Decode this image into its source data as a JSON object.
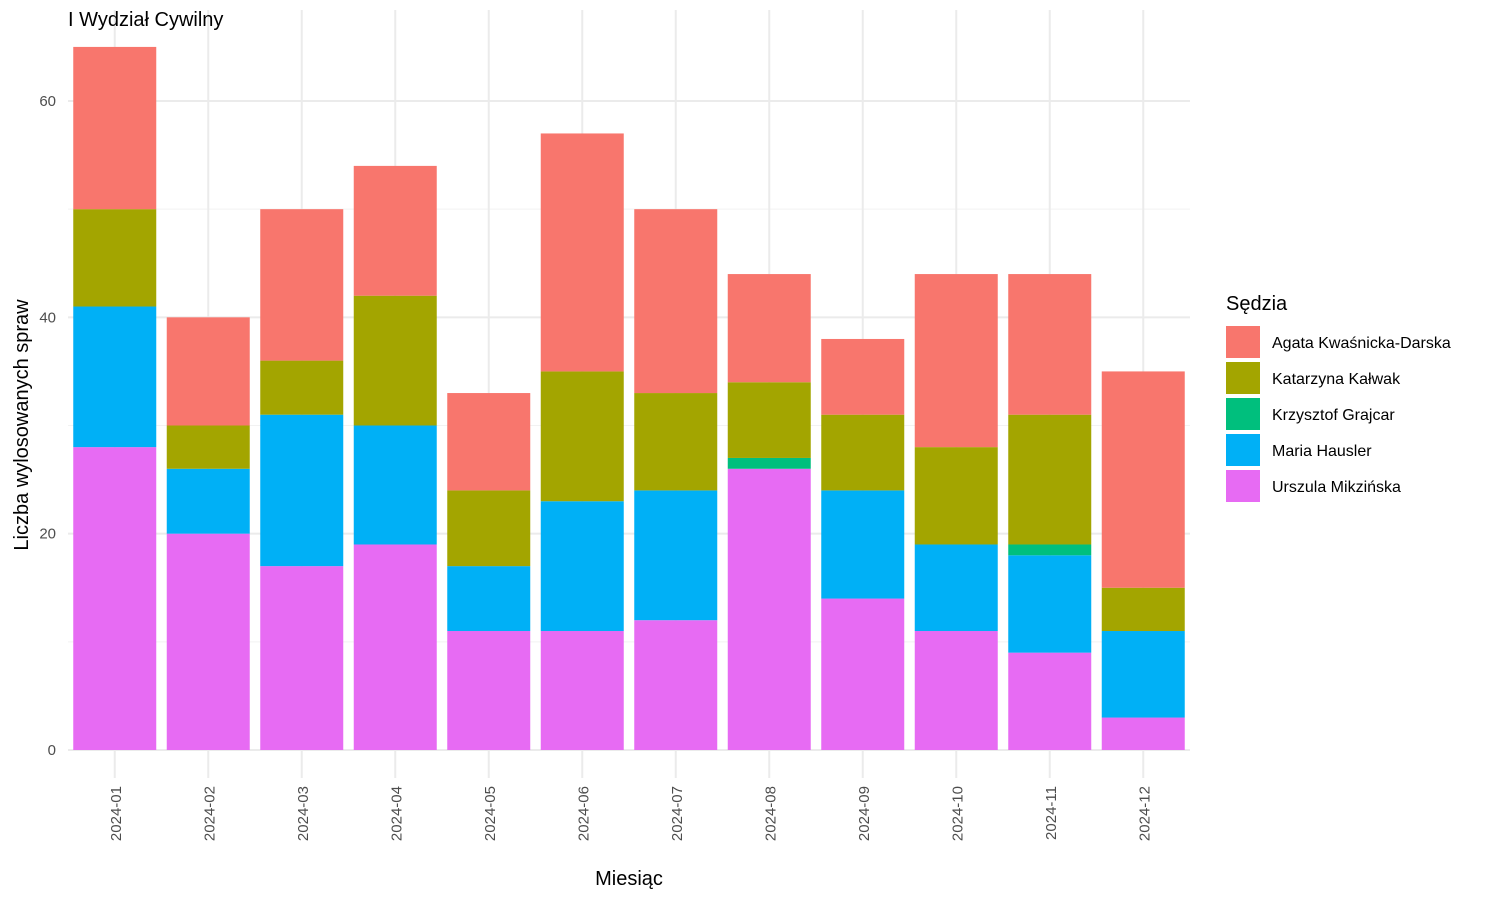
{
  "chart_data": {
    "type": "bar",
    "stacked": true,
    "title": "I Wydział Cywilny",
    "xlabel": "Miesiąc",
    "ylabel": "Liczba wylosowanych spraw",
    "ylim": [
      0,
      65
    ],
    "yticks": [
      0,
      20,
      40,
      60
    ],
    "grid": true,
    "legend": {
      "title": "Sędzia",
      "position": "right"
    },
    "categories": [
      "2024-01",
      "2024-02",
      "2024-03",
      "2024-04",
      "2024-05",
      "2024-06",
      "2024-07",
      "2024-08",
      "2024-09",
      "2024-10",
      "2024-11",
      "2024-12"
    ],
    "series": [
      {
        "name": "Urszula Mikzińska",
        "color": "#E76BF3",
        "values": [
          28,
          20,
          17,
          19,
          11,
          11,
          12,
          26,
          14,
          11,
          9,
          3
        ]
      },
      {
        "name": "Maria Hausler",
        "color": "#00B0F6",
        "values": [
          13,
          6,
          14,
          11,
          6,
          12,
          12,
          0,
          10,
          8,
          9,
          8
        ]
      },
      {
        "name": "Krzysztof Grajcar",
        "color": "#00BF7D",
        "values": [
          0,
          0,
          0,
          0,
          0,
          0,
          0,
          1,
          0,
          0,
          1,
          0
        ]
      },
      {
        "name": "Katarzyna Kałwak",
        "color": "#A3A500",
        "values": [
          9,
          4,
          5,
          12,
          7,
          12,
          9,
          7,
          7,
          9,
          12,
          4
        ]
      },
      {
        "name": "Agata Kwaśnicka-Darska",
        "color": "#F8766D",
        "values": [
          15,
          10,
          14,
          12,
          9,
          22,
          17,
          10,
          7,
          16,
          13,
          20
        ]
      }
    ],
    "legend_order": [
      "Agata Kwaśnicka-Darska",
      "Katarzyna Kałwak",
      "Krzysztof Grajcar",
      "Maria Hausler",
      "Urszula Mikzińska"
    ]
  }
}
